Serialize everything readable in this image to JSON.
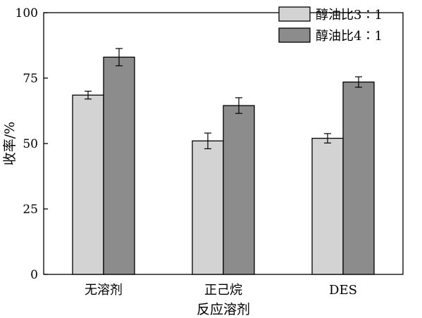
{
  "chart_data": {
    "type": "bar",
    "title": "",
    "xlabel": "反应溶剂",
    "ylabel": "收率/%",
    "ylim": [
      0,
      100
    ],
    "yticks": [
      0,
      25,
      50,
      75,
      100
    ],
    "grid": false,
    "legend_position": "top-right",
    "categories": [
      "无溶剂",
      "正己烷",
      "DES"
    ],
    "series": [
      {
        "name": "醇油比3∶1",
        "color": "#d3d3d3",
        "values": [
          68.5,
          51.0,
          52.0
        ],
        "errors": [
          1.5,
          3.0,
          1.8
        ]
      },
      {
        "name": "醇油比4∶1",
        "color": "#8c8c8c",
        "values": [
          83.0,
          64.5,
          73.5
        ],
        "errors": [
          3.3,
          3.0,
          2.0
        ]
      }
    ]
  }
}
